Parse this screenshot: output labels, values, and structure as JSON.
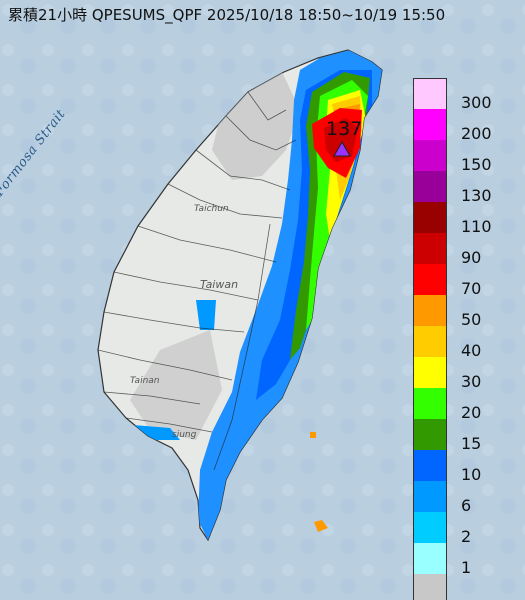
{
  "title": "累積21小時 QPESUMS_QPF 2025/10/18 18:50~10/19 15:50",
  "strait_label": "Formosa Strait",
  "island_label": "Taiwan",
  "place_labels": {
    "taichung": "Taichun",
    "tainan": "Tainan",
    "kaohsiung": "siung"
  },
  "max_value": "137",
  "max_marker_icon": "triangle-marker-icon",
  "legend": {
    "unit": "",
    "levels": [
      {
        "label": "300",
        "color": "#ffc8ff"
      },
      {
        "label": "200",
        "color": "#ff00ff"
      },
      {
        "label": "150",
        "color": "#cc00cc"
      },
      {
        "label": "130",
        "color": "#990099"
      },
      {
        "label": "110",
        "color": "#990000"
      },
      {
        "label": "90",
        "color": "#cc0000"
      },
      {
        "label": "70",
        "color": "#ff0000"
      },
      {
        "label": "50",
        "color": "#ff9900"
      },
      {
        "label": "40",
        "color": "#ffcc00"
      },
      {
        "label": "30",
        "color": "#ffff00"
      },
      {
        "label": "20",
        "color": "#33ff00"
      },
      {
        "label": "15",
        "color": "#339900"
      },
      {
        "label": "10",
        "color": "#0066ff"
      },
      {
        "label": "6",
        "color": "#0099ff"
      },
      {
        "label": "2",
        "color": "#00ccff"
      },
      {
        "label": "1",
        "color": "#99ffff"
      },
      {
        "label": "",
        "color": "#c8c8c8"
      }
    ]
  },
  "colors": {
    "sea": "#b9cfe0",
    "land": "#e8ebe8",
    "no_rain": "#c0c0c0"
  }
}
